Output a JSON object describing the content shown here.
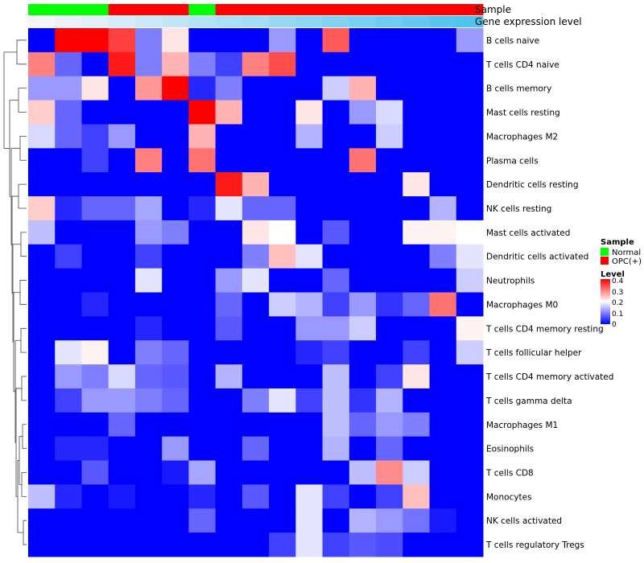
{
  "chart_data": {
    "type": "heatmap",
    "annotation_labels": {
      "sample": "Sample",
      "expression": "Gene expression level"
    },
    "sample_groups": [
      "Normal",
      "Normal",
      "Normal",
      "OPC(+)",
      "OPC(+)",
      "OPC(+)",
      "Normal",
      "OPC(+)",
      "OPC(+)",
      "OPC(+)",
      "OPC(+)",
      "OPC(+)",
      "OPC(+)",
      "OPC(+)",
      "OPC(+)",
      "OPC(+)",
      "OPC(+)"
    ],
    "expression_annotation": [
      0.5,
      0.48,
      0.46,
      0.44,
      0.42,
      0.4,
      0.38,
      0.36,
      0.34,
      0.32,
      0.3,
      0.28,
      0.26,
      0.24,
      0.22,
      0.2,
      0.18
    ],
    "rows": [
      "B cells naive",
      "T cells CD4 naive",
      "B cells memory",
      "Mast cells resting",
      "Macrophages M2",
      "Plasma cells",
      "Dendritic cells resting",
      "NK cells resting",
      "Mast cells activated",
      "Dendritic cells activated",
      "Neutrophils",
      "Macrophages M0",
      "T cells CD4 memory resting",
      "T cells follicular helper",
      "T cells CD4 memory activated",
      "T cells gamma delta",
      "Macrophages M1",
      "Eosinophils",
      "T cells CD8",
      "Monocytes",
      "NK cells activated",
      "T cells regulatory  Tregs"
    ],
    "values": [
      [
        0,
        0.4,
        0.4,
        0.35,
        0.1,
        0.22,
        0,
        0,
        0,
        0.12,
        0,
        0.33,
        0,
        0,
        0,
        0,
        0.12
      ],
      [
        0.3,
        0.08,
        0,
        0.38,
        0.1,
        0.26,
        0.1,
        0.05,
        0.3,
        0.34,
        0,
        0,
        0,
        0,
        0,
        0,
        0
      ],
      [
        0.12,
        0.12,
        0.22,
        0,
        0.28,
        0.4,
        0.03,
        0.1,
        0,
        0,
        0,
        0.16,
        0.26,
        0,
        0,
        0,
        0
      ],
      [
        0.24,
        0.08,
        0,
        0,
        0,
        0,
        0.4,
        0.26,
        0,
        0,
        0.22,
        0,
        0.12,
        0.17,
        0,
        0,
        0
      ],
      [
        0.17,
        0.08,
        0.05,
        0.12,
        0,
        0,
        0.26,
        0,
        0,
        0,
        0.14,
        0,
        0,
        0.16,
        0,
        0,
        0
      ],
      [
        0,
        0,
        0.05,
        0,
        0.3,
        0,
        0.31,
        0,
        0,
        0,
        0,
        0,
        0.31,
        0,
        0,
        0,
        0
      ],
      [
        0,
        0,
        0,
        0,
        0,
        0,
        0,
        0.38,
        0.26,
        0,
        0,
        0,
        0,
        0,
        0.22,
        0,
        0
      ],
      [
        0.24,
        0.03,
        0.08,
        0.08,
        0.13,
        0,
        0.03,
        0.18,
        0.08,
        0.08,
        0,
        0,
        0,
        0,
        0,
        0.14,
        0
      ],
      [
        0.15,
        0,
        0,
        0,
        0.12,
        0.1,
        0,
        0,
        0.22,
        0.2,
        0,
        0.07,
        0,
        0,
        0.21,
        0.21,
        0.2
      ],
      [
        0,
        0.05,
        0,
        0,
        0.05,
        0,
        0,
        0,
        0.1,
        0.25,
        0.18,
        0,
        0,
        0,
        0,
        0.1,
        0.18
      ],
      [
        0,
        0,
        0,
        0,
        0.18,
        0,
        0,
        0.12,
        0.18,
        0,
        0,
        0.08,
        0,
        0,
        0,
        0,
        0.16
      ],
      [
        0,
        0,
        0.03,
        0,
        0,
        0,
        0,
        0.08,
        0,
        0.16,
        0.14,
        0.05,
        0.12,
        0.04,
        0.08,
        0.31,
        0
      ],
      [
        0,
        0,
        0,
        0,
        0.03,
        0,
        0,
        0.07,
        0,
        0,
        0.12,
        0.12,
        0.16,
        0,
        0,
        0,
        0.21
      ],
      [
        0,
        0.18,
        0.21,
        0,
        0.1,
        0.08,
        0,
        0,
        0,
        0,
        0.03,
        0.05,
        0,
        0,
        0.05,
        0,
        0.16
      ],
      [
        0,
        0.12,
        0.1,
        0.17,
        0.08,
        0.07,
        0,
        0.14,
        0,
        0,
        0,
        0.15,
        0,
        0.05,
        0.22,
        0,
        0
      ],
      [
        0,
        0.05,
        0.12,
        0.12,
        0.1,
        0.08,
        0,
        0,
        0.1,
        0.18,
        0.05,
        0.15,
        0.04,
        0.14,
        0,
        0,
        0
      ],
      [
        0,
        0,
        0,
        0.08,
        0,
        0,
        0,
        0,
        0,
        0,
        0,
        0.15,
        0.08,
        0.12,
        0.1,
        0,
        0
      ],
      [
        0,
        0.03,
        0.03,
        0,
        0,
        0.12,
        0,
        0,
        0.08,
        0,
        0,
        0.14,
        0,
        0.08,
        0,
        0,
        0
      ],
      [
        0,
        0,
        0.07,
        0,
        0,
        0.02,
        0.13,
        0,
        0,
        0,
        0,
        0,
        0.15,
        0.29,
        0.16,
        0,
        0
      ],
      [
        0.15,
        0.03,
        0,
        0.02,
        0,
        0,
        0.03,
        0,
        0.07,
        0,
        0.18,
        0.05,
        0,
        0.05,
        0.25,
        0,
        0
      ],
      [
        0,
        0,
        0,
        0,
        0,
        0,
        0.08,
        0,
        0,
        0,
        0.18,
        0,
        0.14,
        0.12,
        0.09,
        0.02,
        0
      ],
      [
        0,
        0,
        0,
        0,
        0,
        0,
        0,
        0,
        0,
        0.05,
        0.18,
        0.05,
        0.07,
        0.06,
        0,
        0,
        0
      ]
    ],
    "color_scale": {
      "min": 0,
      "mid": 0.2,
      "max": 0.4,
      "low": "#0000FF",
      "midColor": "#FFFFFF",
      "high": "#FF0000"
    },
    "legend": {
      "sample_title": "Sample",
      "sample_items": [
        {
          "label": "Normal",
          "color": "#00FF00"
        },
        {
          "label": "OPC(+)",
          "color": "#FF0000"
        }
      ],
      "level_title": "Level",
      "level_ticks": [
        "0.4",
        "0.3",
        "0.2",
        "0.1",
        "0"
      ],
      "position": "right"
    }
  }
}
